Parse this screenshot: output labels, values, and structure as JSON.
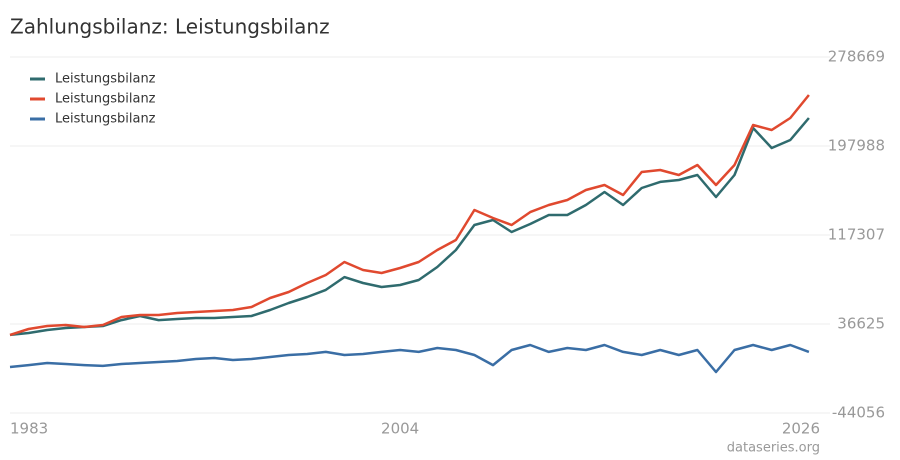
{
  "chart_data": {
    "type": "line",
    "title": "Zahlungsbilanz: Leistungsbilanz",
    "source": "dataseries.org",
    "x": [
      1983,
      1984,
      1985,
      1986,
      1987,
      1988,
      1989,
      1990,
      1991,
      1992,
      1993,
      1994,
      1995,
      1996,
      1997,
      1998,
      1999,
      2000,
      2001,
      2002,
      2003,
      2004,
      2005,
      2006,
      2007,
      2008,
      2009,
      2010,
      2011,
      2012,
      2013,
      2014,
      2015,
      2016,
      2017,
      2018,
      2019,
      2020,
      2021,
      2022,
      2023,
      2024,
      2025,
      2026
    ],
    "series": [
      {
        "name": "Leistungsbilanz",
        "color": "#2f6b6e",
        "values": [
          26700,
          28500,
          31200,
          33000,
          33900,
          34800,
          40200,
          43900,
          40200,
          41200,
          42100,
          42100,
          43000,
          43900,
          49300,
          55700,
          61100,
          67500,
          79100,
          73800,
          70200,
          72000,
          76500,
          88300,
          103700,
          126400,
          130900,
          120000,
          127300,
          135400,
          135400,
          144500,
          156300,
          144500,
          159900,
          165400,
          167200,
          171700,
          151800,
          171700,
          214300,
          196200,
          203400,
          223400
        ]
      },
      {
        "name": "Leistungsbilanz",
        "color": "#e0492f",
        "values": [
          26700,
          32100,
          34800,
          35700,
          33900,
          35700,
          43000,
          44800,
          44800,
          46600,
          47500,
          48400,
          49300,
          52000,
          60200,
          65600,
          73800,
          81000,
          92800,
          85600,
          82900,
          87400,
          92800,
          103700,
          112800,
          140000,
          132700,
          126400,
          138100,
          144500,
          149000,
          158100,
          162600,
          153600,
          174400,
          176200,
          171700,
          180800,
          162600,
          180800,
          217000,
          212500,
          223400,
          244200
        ]
      },
      {
        "name": "Leistungsbilanz",
        "color": "#3a6ea5",
        "values": [
          -2400,
          -600,
          1300,
          400,
          -600,
          -1400,
          400,
          1300,
          2200,
          3100,
          4900,
          5800,
          4000,
          4900,
          6700,
          8500,
          9400,
          11300,
          8500,
          9400,
          11300,
          13100,
          11300,
          14900,
          13100,
          8500,
          -600,
          13100,
          17600,
          11300,
          14900,
          13100,
          17600,
          11300,
          8500,
          13100,
          8500,
          13100,
          -6900,
          13100,
          17600,
          13100,
          17600,
          11300
        ]
      }
    ],
    "xlim": [
      1983,
      2026.6
    ],
    "xticks": [
      1983,
      2004,
      2026
    ],
    "ylim": [
      -44056,
      278669
    ],
    "yticks": [
      -44056,
      36625,
      117307,
      197988,
      278669
    ],
    "grid": true,
    "legend": "top-left"
  }
}
